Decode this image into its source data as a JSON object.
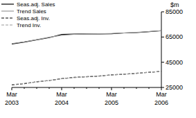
{
  "chart_data": {
    "type": "line",
    "y_label": "$m",
    "categories": [
      "Mar 2003",
      null,
      null,
      null,
      "Mar 2004",
      null,
      null,
      null,
      "Mar 2005",
      null,
      null,
      null,
      "Mar 2006"
    ],
    "series": [
      {
        "name": "Seas.adj. Sales",
        "color": "#000000",
        "line_style": "solid",
        "values": [
          59500,
          61000,
          62800,
          64500,
          67000,
          67300,
          67400,
          67500,
          67600,
          68200,
          68500,
          69200,
          70000
        ]
      },
      {
        "name": "Trend Sales",
        "color": "#999999",
        "line_style": "solid",
        "values": [
          59800,
          61200,
          62900,
          64800,
          66400,
          67100,
          67400,
          67600,
          67800,
          68200,
          68700,
          69300,
          69900
        ]
      },
      {
        "name": "Seas.adj. Inv.",
        "color": "#000000",
        "line_style": "dashed",
        "values": [
          27000,
          28000,
          29500,
          30500,
          32000,
          33000,
          33500,
          34000,
          35000,
          35500,
          36200,
          37000,
          37800
        ]
      },
      {
        "name": "Trend Inv.",
        "color": "#999999",
        "line_style": "dashed",
        "values": [
          27200,
          28200,
          29300,
          30600,
          31900,
          32800,
          33600,
          34200,
          34900,
          35600,
          36300,
          37000,
          37700
        ]
      }
    ],
    "ylim": [
      25000,
      85000
    ],
    "yticks": [
      25000,
      45000,
      65000,
      85000
    ],
    "grid": false
  }
}
